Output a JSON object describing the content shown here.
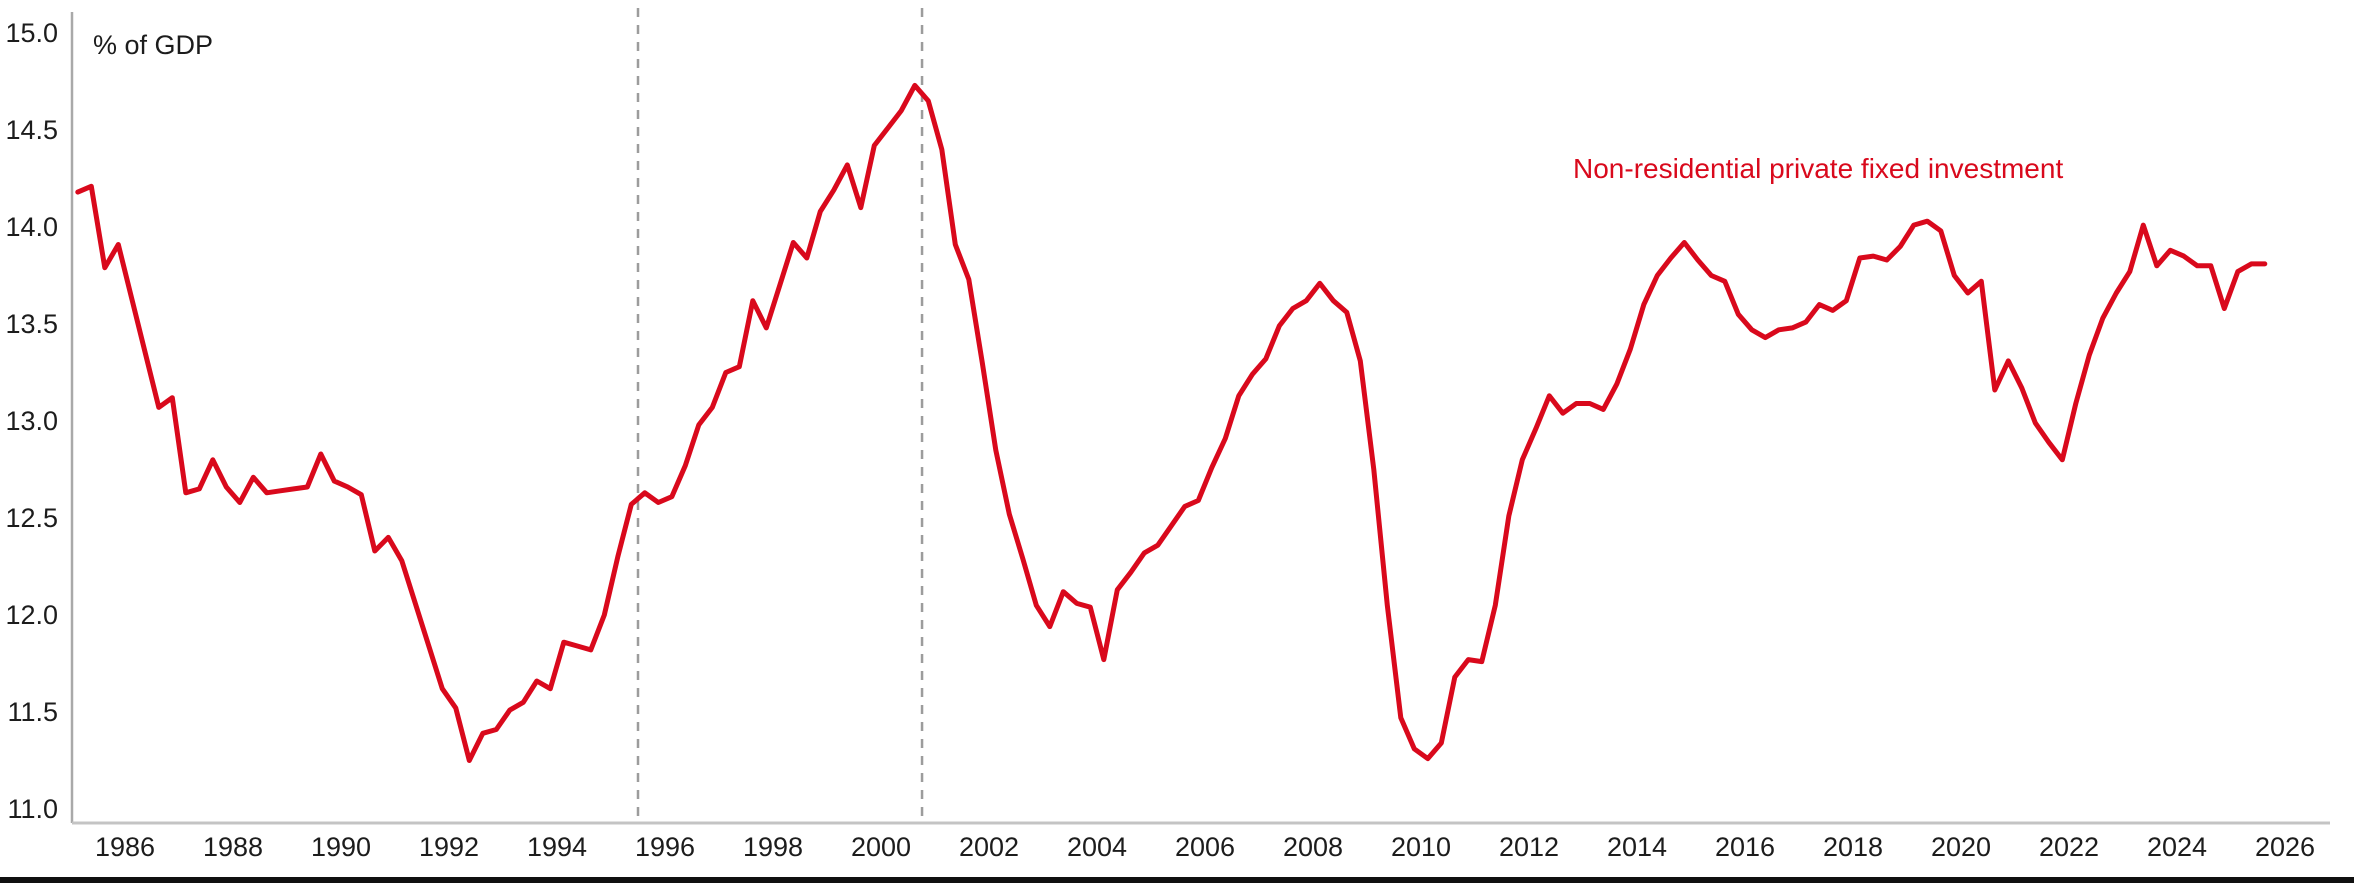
{
  "chart_data": {
    "type": "line",
    "y_axis_title": "% of GDP",
    "series_label": "Non-residential private fixed investment",
    "series_color": "#d9091c",
    "axis_text_color": "#1c1c1c",
    "y_axis_line_color": "#a9a9a9",
    "x_axis_line_color": "#c4c4c4",
    "event_line_color": "#9c9c9c",
    "ylim": [
      11.0,
      15.0
    ],
    "y_ticks": [
      15.0,
      14.5,
      14.0,
      13.5,
      13.0,
      12.5,
      12.0,
      11.5,
      11.0
    ],
    "x_ticks": [
      1986,
      1988,
      1990,
      1992,
      1994,
      1996,
      1998,
      2000,
      2002,
      2004,
      2006,
      2008,
      2010,
      2012,
      2014,
      2016,
      2018,
      2020,
      2022,
      2024,
      2026
    ],
    "event_lines": [
      1995.5,
      2000.76
    ],
    "grid": false,
    "legend_position": "inside-top-right",
    "frequency": "quarterly",
    "start_period": "1985Q1",
    "end_period": "2025Q3",
    "values": [
      14.18,
      14.21,
      13.79,
      13.91,
      13.63,
      13.35,
      13.07,
      13.12,
      12.63,
      12.65,
      12.8,
      12.66,
      12.58,
      12.71,
      12.63,
      12.64,
      12.65,
      12.66,
      12.83,
      12.69,
      12.66,
      12.62,
      12.33,
      12.4,
      12.28,
      12.06,
      11.84,
      11.62,
      11.52,
      11.25,
      11.39,
      11.41,
      11.51,
      11.55,
      11.66,
      11.62,
      11.86,
      11.84,
      11.82,
      12.0,
      12.3,
      12.57,
      12.63,
      12.58,
      12.61,
      12.77,
      12.98,
      13.07,
      13.25,
      13.28,
      13.62,
      13.48,
      13.7,
      13.92,
      13.84,
      14.08,
      14.19,
      14.32,
      14.1,
      14.42,
      14.51,
      14.6,
      14.73,
      14.65,
      14.4,
      13.91,
      13.73,
      13.3,
      12.85,
      12.52,
      12.29,
      12.05,
      11.94,
      12.12,
      12.06,
      12.04,
      11.77,
      12.13,
      12.22,
      12.32,
      12.36,
      12.46,
      12.56,
      12.59,
      12.76,
      12.91,
      13.13,
      13.24,
      13.32,
      13.49,
      13.58,
      13.62,
      13.71,
      13.62,
      13.56,
      13.31,
      12.75,
      12.05,
      11.47,
      11.31,
      11.26,
      11.34,
      11.68,
      11.77,
      11.76,
      12.05,
      12.51,
      12.8,
      12.96,
      13.13,
      13.04,
      13.09,
      13.09,
      13.06,
      13.19,
      13.37,
      13.6,
      13.75,
      13.84,
      13.92,
      13.83,
      13.75,
      13.72,
      13.55,
      13.47,
      13.43,
      13.47,
      13.48,
      13.51,
      13.6,
      13.57,
      13.62,
      13.84,
      13.85,
      13.83,
      13.9,
      14.01,
      14.03,
      13.98,
      13.75,
      13.66,
      13.72,
      13.16,
      13.31,
      13.17,
      12.99,
      12.89,
      12.8,
      13.09,
      13.34,
      13.53,
      13.66,
      13.77,
      14.01,
      13.8,
      13.88,
      13.85,
      13.8,
      13.8,
      13.58,
      13.77,
      13.81,
      13.81
    ]
  }
}
